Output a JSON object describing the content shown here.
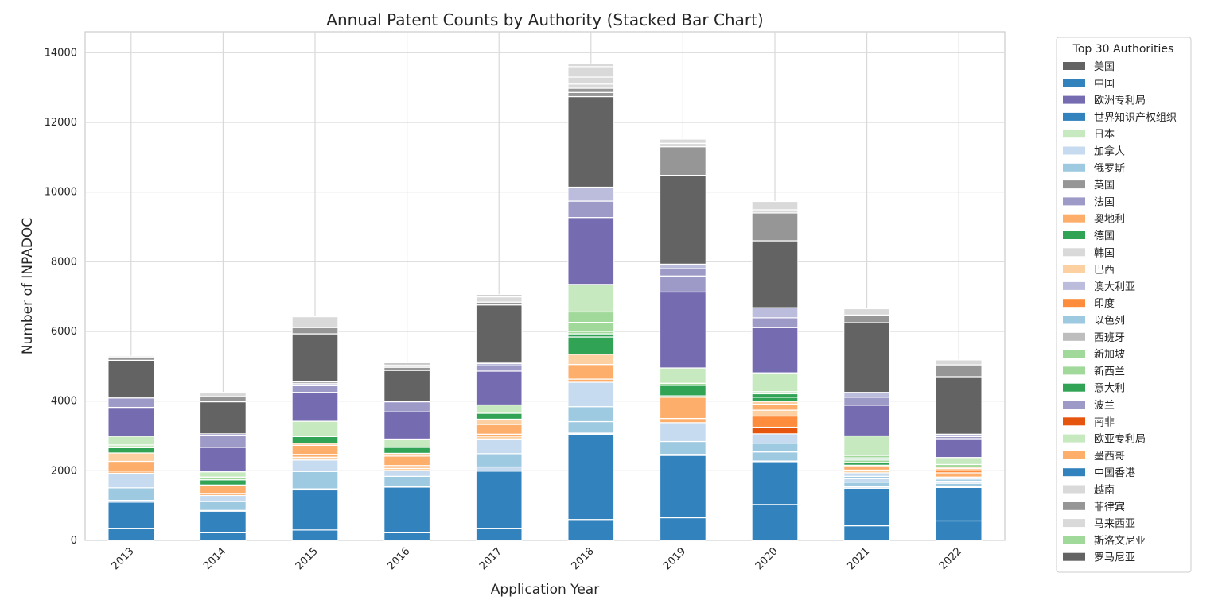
{
  "chart_data": {
    "type": "bar",
    "stacked": true,
    "title": "Annual Patent Counts by Authority (Stacked Bar Chart)",
    "xlabel": "Application Year",
    "ylabel": "Number of INPADOC",
    "ylim": [
      0,
      14600
    ],
    "yticks": [
      0,
      2000,
      4000,
      6000,
      8000,
      10000,
      12000,
      14000
    ],
    "grid": true,
    "legend_title": "Top 30 Authorities",
    "legend_position": "outside-right",
    "categories": [
      "2013",
      "2014",
      "2015",
      "2016",
      "2017",
      "2018",
      "2019",
      "2020",
      "2021",
      "2022"
    ],
    "series": [
      {
        "name": "美国",
        "color": "#636363",
        "values": [
          0,
          0,
          0,
          0,
          0,
          0,
          0,
          0,
          0,
          0
        ]
      },
      {
        "name": "中国",
        "color": "#3182bd",
        "values": [
          350,
          220,
          300,
          220,
          350,
          600,
          650,
          1030,
          420,
          560
        ]
      },
      {
        "name": "欧洲专利局",
        "color": "#756bb1",
        "values": [
          0,
          0,
          0,
          0,
          0,
          0,
          0,
          0,
          0,
          0
        ]
      },
      {
        "name": "世界知识产权组织",
        "color": "#3182bd",
        "values": [
          750,
          620,
          1150,
          1310,
          1640,
          2450,
          1790,
          1230,
          1080,
          960
        ]
      },
      {
        "name": "日本",
        "color": "#c7e9c0",
        "values": [
          0,
          0,
          0,
          0,
          0,
          0,
          0,
          0,
          0,
          0
        ]
      },
      {
        "name": "加拿大",
        "color": "#c6dbef",
        "values": [
          50,
          20,
          30,
          20,
          120,
          30,
          30,
          20,
          40,
          20
        ]
      },
      {
        "name": "俄罗斯",
        "color": "#9ecae1",
        "values": [
          360,
          260,
          500,
          290,
          380,
          330,
          370,
          280,
          130,
          100
        ]
      },
      {
        "name": "英国",
        "color": "#969696",
        "values": [
          0,
          0,
          0,
          0,
          0,
          0,
          0,
          0,
          0,
          0
        ]
      },
      {
        "name": "法国",
        "color": "#9e9ac8",
        "values": [
          0,
          0,
          0,
          0,
          0,
          0,
          0,
          0,
          0,
          0
        ]
      },
      {
        "name": "奥地利",
        "color": "#fdae6b",
        "values": [
          0,
          0,
          0,
          0,
          0,
          0,
          0,
          0,
          0,
          0
        ]
      },
      {
        "name": "德国",
        "color": "#31a354",
        "values": [
          0,
          0,
          0,
          0,
          0,
          0,
          0,
          0,
          0,
          0
        ]
      },
      {
        "name": "韩国",
        "color": "#d9d9d9",
        "values": [
          0,
          0,
          0,
          0,
          0,
          0,
          0,
          0,
          0,
          0
        ]
      },
      {
        "name": "巴西",
        "color": "#fdd0a2",
        "values": [
          0,
          0,
          0,
          0,
          0,
          0,
          0,
          0,
          0,
          0
        ]
      },
      {
        "name": "澳大利亚",
        "color": "#bcbddc",
        "values": [
          0,
          0,
          0,
          0,
          0,
          0,
          0,
          0,
          0,
          0
        ]
      },
      {
        "name": "印度",
        "color": "#fd8d3c",
        "values": [
          0,
          0,
          0,
          0,
          0,
          0,
          0,
          0,
          0,
          0
        ]
      },
      {
        "name": "以色列",
        "color": "#9ecae1",
        "values": [
          0,
          0,
          0,
          0,
          0,
          0,
          0,
          0,
          0,
          0
        ]
      },
      {
        "name": "西班牙",
        "color": "#bdbdbd",
        "values": [
          0,
          0,
          0,
          0,
          0,
          0,
          0,
          0,
          0,
          0
        ]
      },
      {
        "name": "新加坡",
        "color": "#a1d99b",
        "values": [
          0,
          0,
          0,
          0,
          0,
          0,
          0,
          0,
          0,
          0
        ]
      },
      {
        "name": "新西兰",
        "color": "#a1d99b",
        "values": [
          0,
          0,
          0,
          0,
          0,
          0,
          0,
          0,
          0,
          0
        ]
      },
      {
        "name": "意大利",
        "color": "#31a354",
        "values": [
          0,
          0,
          0,
          0,
          0,
          0,
          0,
          0,
          0,
          0
        ]
      },
      {
        "name": "波兰",
        "color": "#9e9ac8",
        "values": [
          0,
          0,
          0,
          0,
          0,
          0,
          0,
          0,
          0,
          0
        ]
      },
      {
        "name": "南非",
        "color": "#e6550d",
        "values": [
          0,
          0,
          0,
          0,
          0,
          0,
          0,
          0,
          0,
          0
        ]
      },
      {
        "name": "欧亚专利局",
        "color": "#c7e9c0",
        "values": [
          0,
          0,
          0,
          0,
          0,
          0,
          0,
          0,
          0,
          0
        ]
      },
      {
        "name": "墨西哥",
        "color": "#fdae6b",
        "values": [
          0,
          0,
          0,
          0,
          0,
          0,
          0,
          0,
          0,
          0
        ]
      },
      {
        "name": "中国香港",
        "color": "#3182bd",
        "values": [
          0,
          0,
          0,
          0,
          0,
          0,
          0,
          0,
          0,
          0
        ]
      },
      {
        "name": "越南",
        "color": "#d9d9d9",
        "values": [
          0,
          0,
          0,
          0,
          0,
          0,
          0,
          0,
          0,
          0
        ]
      },
      {
        "name": "菲律宾",
        "color": "#969696",
        "values": [
          0,
          0,
          0,
          0,
          0,
          0,
          0,
          0,
          0,
          0
        ]
      },
      {
        "name": "马来西亚",
        "color": "#d9d9d9",
        "values": [
          0,
          0,
          0,
          0,
          0,
          0,
          0,
          0,
          0,
          0
        ]
      },
      {
        "name": "斯洛文尼亚",
        "color": "#a1d99b",
        "values": [
          0,
          0,
          0,
          0,
          0,
          0,
          0,
          0,
          0,
          0
        ]
      },
      {
        "name": "罗马尼亚",
        "color": "#636363",
        "values": [
          0,
          0,
          0,
          0,
          0,
          0,
          0,
          0,
          0,
          0
        ]
      }
    ],
    "segments_by_year": {
      "2013": [
        [
          "中国",
          350
        ],
        [
          "世界知识产权组织",
          750
        ],
        [
          "加拿大",
          50
        ],
        [
          "俄罗斯",
          360
        ],
        [
          "加拿大",
          420
        ],
        [
          "奥地利",
          60
        ],
        [
          "奥地利",
          280
        ],
        [
          "巴西",
          240
        ],
        [
          "德国",
          150
        ],
        [
          "日本",
          80
        ],
        [
          "欧亚专利局",
          250
        ],
        [
          "欧洲专利局",
          830
        ],
        [
          "法国",
          270
        ],
        [
          "美国",
          1080
        ],
        [
          "英国",
          80
        ],
        [
          "韩国",
          40
        ]
      ],
      "2014": [
        [
          "中国",
          220
        ],
        [
          "世界知识产权组织",
          620
        ],
        [
          "加拿大",
          20
        ],
        [
          "俄罗斯",
          260
        ],
        [
          "加拿大",
          170
        ],
        [
          "奥地利",
          60
        ],
        [
          "奥地利",
          240
        ],
        [
          "德国",
          150
        ],
        [
          "新加坡",
          80
        ],
        [
          "日本",
          150
        ],
        [
          "欧洲专利局",
          700
        ],
        [
          "法国",
          350
        ],
        [
          "欧洲专利局",
          40
        ],
        [
          "美国",
          920
        ],
        [
          "英国",
          150
        ],
        [
          "韩国",
          120
        ]
      ],
      "2015": [
        [
          "中国",
          300
        ],
        [
          "世界知识产权组织",
          1150
        ],
        [
          "加拿大",
          30
        ],
        [
          "俄罗斯",
          500
        ],
        [
          "加拿大",
          330
        ],
        [
          "巴西",
          80
        ],
        [
          "奥地利",
          80
        ],
        [
          "奥地利",
          260
        ],
        [
          "巴西",
          60
        ],
        [
          "德国",
          190
        ],
        [
          "日本",
          440
        ],
        [
          "欧洲专利局",
          830
        ],
        [
          "法国",
          190
        ],
        [
          "澳大利亚",
          60
        ],
        [
          "英国",
          50
        ],
        [
          "美国",
          1380
        ],
        [
          "英国",
          180
        ],
        [
          "韩国",
          310
        ]
      ],
      "2016": [
        [
          "中国",
          220
        ],
        [
          "世界知识产权组织",
          1310
        ],
        [
          "加拿大",
          20
        ],
        [
          "俄罗斯",
          290
        ],
        [
          "加拿大",
          170
        ],
        [
          "巴西",
          60
        ],
        [
          "奥地利",
          80
        ],
        [
          "奥地利",
          270
        ],
        [
          "巴西",
          80
        ],
        [
          "德国",
          170
        ],
        [
          "日本",
          240
        ],
        [
          "欧洲专利局",
          780
        ],
        [
          "法国",
          290
        ],
        [
          "美国",
          900
        ],
        [
          "英国",
          90
        ],
        [
          "韩国",
          70
        ],
        [
          "英国",
          50
        ]
      ],
      "2017": [
        [
          "中国",
          350
        ],
        [
          "世界知识产权组织",
          1640
        ],
        [
          "加拿大",
          120
        ],
        [
          "俄罗斯",
          380
        ],
        [
          "加拿大",
          420
        ],
        [
          "巴西",
          80
        ],
        [
          "奥地利",
          60
        ],
        [
          "奥地利",
          280
        ],
        [
          "巴西",
          150
        ],
        [
          "德国",
          170
        ],
        [
          "日本",
          240
        ],
        [
          "欧洲专利局",
          970
        ],
        [
          "法国",
          150
        ],
        [
          "澳大利亚",
          70
        ],
        [
          "英国",
          40
        ],
        [
          "美国",
          1640
        ],
        [
          "英国",
          80
        ],
        [
          "韩国",
          150
        ],
        [
          "英国",
          60
        ]
      ],
      "2018": [
        [
          "中国",
          600
        ],
        [
          "世界知识产权组织",
          2450
        ],
        [
          "加拿大",
          30
        ],
        [
          "俄罗斯",
          330
        ],
        [
          "俄罗斯",
          430
        ],
        [
          "加拿大",
          700
        ],
        [
          "奥地利",
          90
        ],
        [
          "奥地利",
          420
        ],
        [
          "巴西",
          290
        ],
        [
          "德国",
          500
        ],
        [
          "意大利",
          90
        ],
        [
          "新西兰",
          70
        ],
        [
          "新加坡",
          260
        ],
        [
          "新加坡",
          300
        ],
        [
          "欧亚专利局",
          790
        ],
        [
          "欧洲专利局",
          1920
        ],
        [
          "法国",
          470
        ],
        [
          "澳大利亚",
          400
        ],
        [
          "美国",
          2600
        ],
        [
          "英国",
          120
        ],
        [
          "英国",
          120
        ],
        [
          "韩国",
          120
        ],
        [
          "韩国",
          200
        ],
        [
          "韩国",
          300
        ],
        [
          "韩国",
          80
        ]
      ],
      "2019": [
        [
          "中国",
          650
        ],
        [
          "世界知识产权组织",
          1790
        ],
        [
          "加拿大",
          30
        ],
        [
          "俄罗斯",
          370
        ],
        [
          "加拿大",
          540
        ],
        [
          "奥地利",
          120
        ],
        [
          "奥地利",
          610
        ],
        [
          "德国",
          40
        ],
        [
          "德国",
          300
        ],
        [
          "新加坡",
          60
        ],
        [
          "日本",
          440
        ],
        [
          "欧洲专利局",
          2180
        ],
        [
          "法国",
          460
        ],
        [
          "法国",
          210
        ],
        [
          "澳大利亚",
          130
        ],
        [
          "美国",
          2550
        ],
        [
          "英国",
          820
        ],
        [
          "韩国",
          100
        ],
        [
          "韩国",
          120
        ]
      ],
      "2020": [
        [
          "中国",
          1030
        ],
        [
          "世界知识产权组织",
          1230
        ],
        [
          "加拿大",
          20
        ],
        [
          "俄罗斯",
          260
        ],
        [
          "俄罗斯",
          250
        ],
        [
          "加拿大",
          270
        ],
        [
          "南非",
          190
        ],
        [
          "印度",
          320
        ],
        [
          "巴西",
          170
        ],
        [
          "奥地利",
          170
        ],
        [
          "巴西",
          80
        ],
        [
          "德国",
          120
        ],
        [
          "意大利",
          100
        ],
        [
          "新加坡",
          60
        ],
        [
          "日本",
          540
        ],
        [
          "欧洲专利局",
          1300
        ],
        [
          "法国",
          280
        ],
        [
          "澳大利亚",
          290
        ],
        [
          "美国",
          1920
        ],
        [
          "英国",
          800
        ],
        [
          "韩国",
          90
        ],
        [
          "韩国",
          240
        ]
      ],
      "2021": [
        [
          "中国",
          420
        ],
        [
          "世界知识产权组织",
          1080
        ],
        [
          "加拿大",
          40
        ],
        [
          "俄罗斯",
          130
        ],
        [
          "加拿大",
          100
        ],
        [
          "俄罗斯",
          70
        ],
        [
          "加拿大",
          100
        ],
        [
          "巴西",
          80
        ],
        [
          "奥地利",
          100
        ],
        [
          "巴西",
          40
        ],
        [
          "德国",
          80
        ],
        [
          "新加坡",
          70
        ],
        [
          "德国",
          60
        ],
        [
          "新加坡",
          70
        ],
        [
          "日本",
          560
        ],
        [
          "欧洲专利局",
          880
        ],
        [
          "法国",
          230
        ],
        [
          "澳大利亚",
          140
        ],
        [
          "美国",
          2000
        ],
        [
          "英国",
          220
        ],
        [
          "韩国",
          180
        ]
      ],
      "2022": [
        [
          "中国",
          560
        ],
        [
          "世界知识产权组织",
          960
        ],
        [
          "加拿大",
          20
        ],
        [
          "俄罗斯",
          100
        ],
        [
          "加拿大",
          60
        ],
        [
          "俄罗斯",
          60
        ],
        [
          "加拿大",
          60
        ],
        [
          "奥地利",
          120
        ],
        [
          "印度",
          60
        ],
        [
          "奥地利",
          60
        ],
        [
          "巴西",
          40
        ],
        [
          "新加坡",
          80
        ],
        [
          "日本",
          200
        ],
        [
          "欧洲专利局",
          540
        ],
        [
          "法国",
          60
        ],
        [
          "澳大利亚",
          70
        ],
        [
          "美国",
          1650
        ],
        [
          "英国",
          340
        ],
        [
          "韩国",
          140
        ]
      ]
    }
  }
}
